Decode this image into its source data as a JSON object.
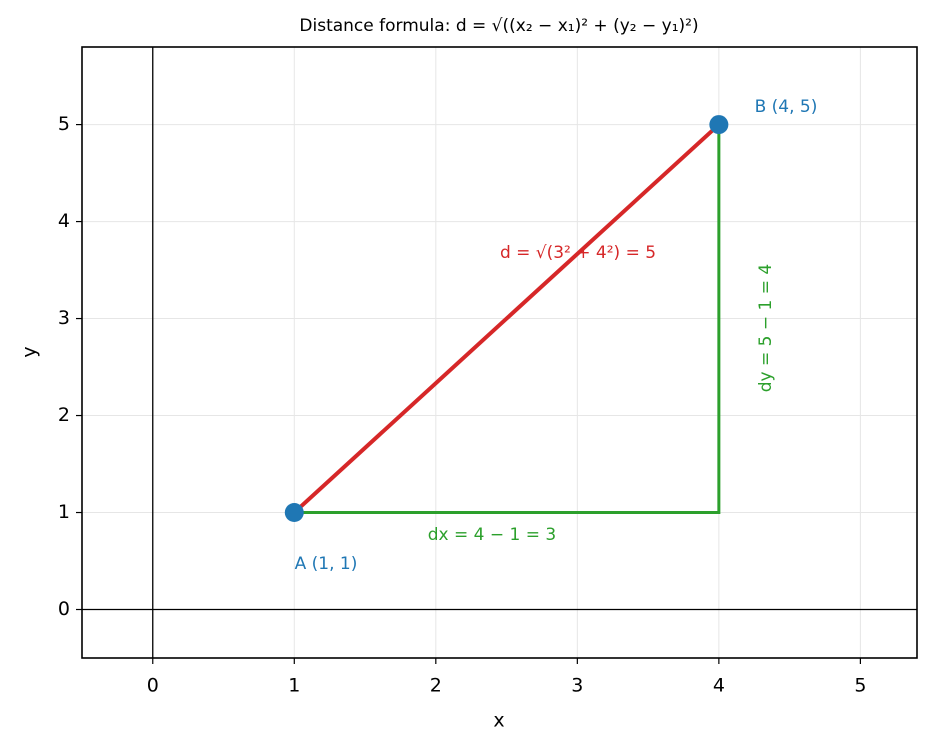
{
  "chart_data": {
    "type": "line",
    "title": "Distance formula: d = √((x₂ − x₁)² + (y₂ − y₁)²)",
    "xlabel": "x",
    "ylabel": "y",
    "xlim": [
      -0.5,
      5.4
    ],
    "ylim": [
      -0.5,
      5.8
    ],
    "xticks": [
      0,
      1,
      2,
      3,
      4,
      5
    ],
    "yticks": [
      0,
      1,
      2,
      3,
      4,
      5
    ],
    "grid": true,
    "origin_axes": true,
    "series": [
      {
        "color": "#2ca02c",
        "x": [
          1,
          4,
          4
        ],
        "values": [
          1,
          1,
          5
        ],
        "line": true,
        "marker": false
      },
      {
        "color": "#d62728",
        "x": [
          1,
          4
        ],
        "values": [
          1,
          5
        ],
        "line": true,
        "marker": false
      },
      {
        "color": "#1f77b4",
        "x": [
          1,
          4
        ],
        "values": [
          1,
          5
        ],
        "line": false,
        "marker": true
      }
    ],
    "annotations": [
      {
        "text": "d = √(3² + 4²) = 5",
        "color": "#d62728"
      },
      {
        "text": "dx = 4 − 1 = 3",
        "color": "#2ca02c"
      },
      {
        "text": "dy = 5 − 1 = 4",
        "color": "#2ca02c"
      },
      {
        "text": "A (1, 1)",
        "color": "#1f77b4"
      },
      {
        "text": "B (4, 5)",
        "color": "#1f77b4"
      }
    ]
  }
}
